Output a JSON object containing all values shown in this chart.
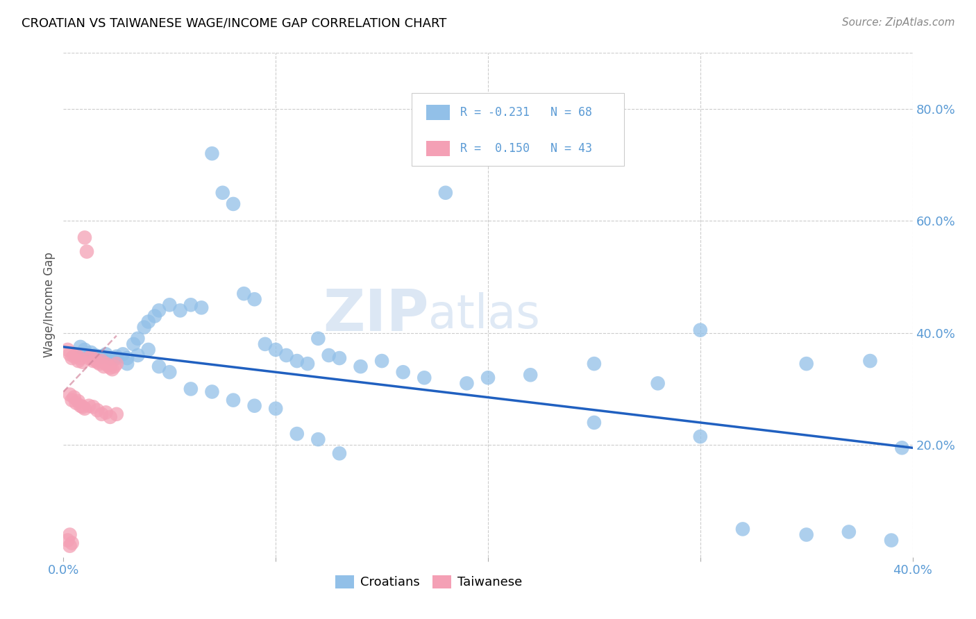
{
  "title": "CROATIAN VS TAIWANESE WAGE/INCOME GAP CORRELATION CHART",
  "source": "Source: ZipAtlas.com",
  "ylabel": "Wage/Income Gap",
  "right_yticklabels": [
    "20.0%",
    "40.0%",
    "60.0%",
    "80.0%"
  ],
  "right_yticks": [
    0.2,
    0.4,
    0.6,
    0.8
  ],
  "blue_color": "#92C0E8",
  "pink_color": "#F4A0B5",
  "trend_blue_color": "#2060C0",
  "trend_pink_color": "#D08098",
  "watermark_color": "#C5D8EE",
  "title_color": "#000000",
  "source_color": "#888888",
  "axis_label_color": "#5B9BD5",
  "ylabel_color": "#555555",
  "grid_color": "#CCCCCC",
  "xlim": [
    0.0,
    0.4
  ],
  "ylim": [
    0.0,
    0.9
  ],
  "blue_x": [
    0.008,
    0.01,
    0.013,
    0.015,
    0.018,
    0.02,
    0.022,
    0.025,
    0.028,
    0.03,
    0.033,
    0.035,
    0.038,
    0.04,
    0.043,
    0.045,
    0.05,
    0.055,
    0.06,
    0.065,
    0.07,
    0.075,
    0.08,
    0.085,
    0.09,
    0.095,
    0.1,
    0.105,
    0.11,
    0.115,
    0.12,
    0.125,
    0.13,
    0.14,
    0.15,
    0.16,
    0.17,
    0.18,
    0.19,
    0.2,
    0.22,
    0.25,
    0.28,
    0.3,
    0.35,
    0.38,
    0.395,
    0.025,
    0.03,
    0.035,
    0.04,
    0.045,
    0.05,
    0.06,
    0.07,
    0.08,
    0.09,
    0.1,
    0.11,
    0.12,
    0.13,
    0.25,
    0.3,
    0.35,
    0.37,
    0.39,
    0.32
  ],
  "blue_y": [
    0.375,
    0.37,
    0.365,
    0.36,
    0.358,
    0.362,
    0.355,
    0.358,
    0.362,
    0.355,
    0.38,
    0.39,
    0.41,
    0.42,
    0.43,
    0.44,
    0.45,
    0.44,
    0.45,
    0.445,
    0.72,
    0.65,
    0.63,
    0.47,
    0.46,
    0.38,
    0.37,
    0.36,
    0.35,
    0.345,
    0.39,
    0.36,
    0.355,
    0.34,
    0.35,
    0.33,
    0.32,
    0.65,
    0.31,
    0.32,
    0.325,
    0.345,
    0.31,
    0.405,
    0.345,
    0.35,
    0.195,
    0.355,
    0.345,
    0.36,
    0.37,
    0.34,
    0.33,
    0.3,
    0.295,
    0.28,
    0.27,
    0.265,
    0.22,
    0.21,
    0.185,
    0.24,
    0.215,
    0.04,
    0.045,
    0.03,
    0.05
  ],
  "pink_x": [
    0.002,
    0.003,
    0.004,
    0.005,
    0.006,
    0.007,
    0.008,
    0.009,
    0.01,
    0.011,
    0.012,
    0.013,
    0.014,
    0.015,
    0.016,
    0.017,
    0.018,
    0.019,
    0.02,
    0.021,
    0.022,
    0.023,
    0.024,
    0.025,
    0.003,
    0.004,
    0.005,
    0.006,
    0.007,
    0.008,
    0.009,
    0.01,
    0.012,
    0.014,
    0.016,
    0.018,
    0.02,
    0.022,
    0.025,
    0.003,
    0.002,
    0.004,
    0.003
  ],
  "pink_y": [
    0.37,
    0.362,
    0.355,
    0.358,
    0.36,
    0.35,
    0.355,
    0.348,
    0.57,
    0.545,
    0.355,
    0.358,
    0.35,
    0.352,
    0.348,
    0.345,
    0.35,
    0.34,
    0.345,
    0.342,
    0.338,
    0.335,
    0.34,
    0.345,
    0.29,
    0.28,
    0.285,
    0.275,
    0.278,
    0.27,
    0.268,
    0.265,
    0.27,
    0.268,
    0.262,
    0.255,
    0.258,
    0.25,
    0.255,
    0.04,
    0.03,
    0.025,
    0.02
  ],
  "trend_blue_x0": 0.0,
  "trend_blue_x1": 0.4,
  "trend_blue_y0": 0.375,
  "trend_blue_y1": 0.195,
  "trend_pink_x0": 0.0,
  "trend_pink_x1": 0.025,
  "trend_pink_y0": 0.295,
  "trend_pink_y1": 0.395
}
